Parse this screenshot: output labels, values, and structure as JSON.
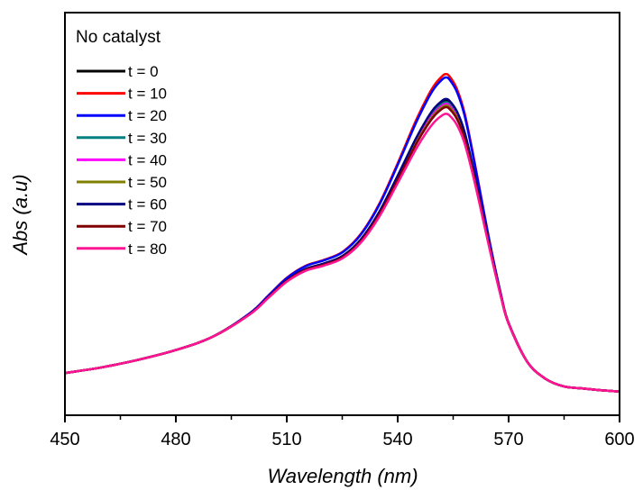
{
  "chart_data": {
    "type": "line",
    "title": "",
    "xlabel": "Wavelength (nm)",
    "ylabel": "Abs (a.u)",
    "xlim": [
      450,
      600
    ],
    "ylim": [
      0,
      1.05
    ],
    "x_ticks": [
      450,
      480,
      510,
      540,
      570,
      600
    ],
    "y_ticks_shown": false,
    "grid": false,
    "legend": {
      "title": "No catalyst",
      "position": "top-left"
    },
    "x": [
      450,
      460,
      470,
      480,
      490,
      500,
      505,
      510,
      515,
      520,
      525,
      530,
      535,
      540,
      545,
      548,
      550,
      552,
      553,
      554,
      556,
      558,
      560,
      562,
      565,
      568,
      570,
      575,
      580,
      585,
      590,
      595,
      600
    ],
    "profile": [
      0.11,
      0.125,
      0.145,
      0.17,
      0.205,
      0.265,
      0.31,
      0.355,
      0.385,
      0.4,
      0.42,
      0.465,
      0.54,
      0.64,
      0.745,
      0.8,
      0.83,
      0.85,
      0.855,
      0.85,
      0.82,
      0.765,
      0.68,
      0.585,
      0.44,
      0.31,
      0.24,
      0.14,
      0.095,
      0.075,
      0.07,
      0.065,
      0.062
    ],
    "series": [
      {
        "name": "t = 0",
        "color": "#000000",
        "values_scale": 0.96
      },
      {
        "name": "t = 10",
        "color": "#ff0000",
        "values_scale": 1.04
      },
      {
        "name": "t = 20",
        "color": "#0000ff",
        "values_scale": 1.03
      },
      {
        "name": "t = 30",
        "color": "#008080",
        "values_scale": 0.955
      },
      {
        "name": "t = 40",
        "color": "#ff00ff",
        "values_scale": 0.95
      },
      {
        "name": "t = 50",
        "color": "#808000",
        "values_scale": 0.945
      },
      {
        "name": "t = 60",
        "color": "#000080",
        "values_scale": 0.965
      },
      {
        "name": "t = 70",
        "color": "#800000",
        "values_scale": 0.94
      },
      {
        "name": "t = 80",
        "color": "#ff1493",
        "values_scale": 0.92
      }
    ]
  }
}
